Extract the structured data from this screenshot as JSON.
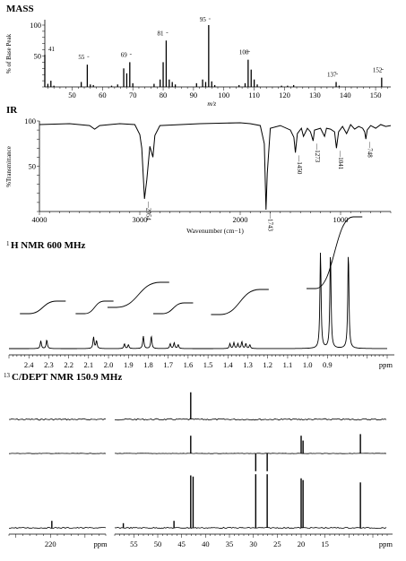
{
  "chart_data": [
    {
      "type": "bar",
      "panel": "mass",
      "title": "MASS",
      "ylabel": "% of Base Peak",
      "xlabel": "m/z",
      "xlim": [
        41,
        155
      ],
      "ylim": [
        0,
        100
      ],
      "xticks": [
        "50",
        "60",
        "70",
        "80",
        "90",
        "100",
        "110",
        "120",
        "130",
        "140",
        "150"
      ],
      "yticks": [
        "100",
        "50"
      ],
      "annotations": [
        "41",
        "55",
        "69",
        "81",
        "95",
        "108",
        "137",
        "152"
      ],
      "peaks": [
        {
          "mz": 41,
          "i": 52
        },
        {
          "mz": 42,
          "i": 5
        },
        {
          "mz": 43,
          "i": 10
        },
        {
          "mz": 44,
          "i": 2
        },
        {
          "mz": 53,
          "i": 8
        },
        {
          "mz": 55,
          "i": 36
        },
        {
          "mz": 56,
          "i": 4
        },
        {
          "mz": 57,
          "i": 3
        },
        {
          "mz": 63,
          "i": 2
        },
        {
          "mz": 65,
          "i": 4
        },
        {
          "mz": 67,
          "i": 30
        },
        {
          "mz": 68,
          "i": 22
        },
        {
          "mz": 69,
          "i": 40
        },
        {
          "mz": 70,
          "i": 6
        },
        {
          "mz": 77,
          "i": 5
        },
        {
          "mz": 79,
          "i": 12
        },
        {
          "mz": 80,
          "i": 40
        },
        {
          "mz": 81,
          "i": 75
        },
        {
          "mz": 82,
          "i": 12
        },
        {
          "mz": 83,
          "i": 8
        },
        {
          "mz": 84,
          "i": 4
        },
        {
          "mz": 91,
          "i": 6
        },
        {
          "mz": 93,
          "i": 12
        },
        {
          "mz": 94,
          "i": 8
        },
        {
          "mz": 95,
          "i": 100
        },
        {
          "mz": 96,
          "i": 9
        },
        {
          "mz": 97,
          "i": 3
        },
        {
          "mz": 105,
          "i": 3
        },
        {
          "mz": 107,
          "i": 6
        },
        {
          "mz": 108,
          "i": 44
        },
        {
          "mz": 109,
          "i": 28
        },
        {
          "mz": 110,
          "i": 12
        },
        {
          "mz": 111,
          "i": 4
        },
        {
          "mz": 119,
          "i": 2
        },
        {
          "mz": 121,
          "i": 2
        },
        {
          "mz": 123,
          "i": 3
        },
        {
          "mz": 137,
          "i": 8
        },
        {
          "mz": 138,
          "i": 2
        },
        {
          "mz": 152,
          "i": 15
        }
      ]
    },
    {
      "type": "line",
      "panel": "ir",
      "title": "IR",
      "ylabel": "%Transmittance",
      "xlabel": "Wavenumber (cm−1)",
      "xlim": [
        4000,
        500
      ],
      "ylim": [
        0,
        100
      ],
      "xticks": [
        "4000",
        "3000",
        "2000",
        "1000"
      ],
      "yticks": [
        "100",
        "50"
      ],
      "annotations": [
        "2954",
        "1743",
        "1450",
        "1273",
        "1041",
        "748"
      ],
      "points": [
        [
          4000,
          96
        ],
        [
          3700,
          97
        ],
        [
          3500,
          95
        ],
        [
          3450,
          91
        ],
        [
          3400,
          95
        ],
        [
          3200,
          97
        ],
        [
          3050,
          96
        ],
        [
          3000,
          85
        ],
        [
          2980,
          70
        ],
        [
          2954,
          14
        ],
        [
          2930,
          35
        ],
        [
          2900,
          72
        ],
        [
          2870,
          60
        ],
        [
          2850,
          84
        ],
        [
          2800,
          95
        ],
        [
          2400,
          97
        ],
        [
          2000,
          98
        ],
        [
          1900,
          97
        ],
        [
          1800,
          95
        ],
        [
          1760,
          75
        ],
        [
          1743,
          2
        ],
        [
          1730,
          42
        ],
        [
          1700,
          92
        ],
        [
          1600,
          95
        ],
        [
          1500,
          90
        ],
        [
          1465,
          82
        ],
        [
          1450,
          65
        ],
        [
          1430,
          86
        ],
        [
          1390,
          92
        ],
        [
          1370,
          83
        ],
        [
          1330,
          92
        ],
        [
          1300,
          88
        ],
        [
          1273,
          78
        ],
        [
          1260,
          90
        ],
        [
          1200,
          92
        ],
        [
          1160,
          83
        ],
        [
          1140,
          92
        ],
        [
          1100,
          91
        ],
        [
          1060,
          88
        ],
        [
          1041,
          70
        ],
        [
          1020,
          88
        ],
        [
          980,
          94
        ],
        [
          940,
          86
        ],
        [
          900,
          96
        ],
        [
          860,
          91
        ],
        [
          820,
          94
        ],
        [
          780,
          92
        ],
        [
          760,
          88
        ],
        [
          748,
          80
        ],
        [
          735,
          90
        ],
        [
          700,
          95
        ],
        [
          650,
          92
        ],
        [
          600,
          96
        ],
        [
          550,
          94
        ],
        [
          500,
          95
        ]
      ]
    },
    {
      "type": "line",
      "panel": "hnmr",
      "title": "H NMR 600 MHz",
      "title_sup": "1",
      "xlabel": "ppm",
      "xlim": [
        2.5,
        0.6
      ],
      "xticks": [
        "2.4",
        "2.3",
        "2.2",
        "2.1",
        "2.0",
        "1.9",
        "1.8",
        "1.7",
        "1.6",
        "1.5",
        "1.4",
        "1.3",
        "1.2",
        "1.1",
        "1.0",
        "0.9"
      ],
      "peaks": [
        {
          "ppm": 2.34,
          "h": 8
        },
        {
          "ppm": 2.31,
          "h": 9
        },
        {
          "ppm": 2.075,
          "h": 12
        },
        {
          "ppm": 2.06,
          "h": 8
        },
        {
          "ppm": 1.92,
          "h": 5
        },
        {
          "ppm": 1.9,
          "h": 4
        },
        {
          "ppm": 1.825,
          "h": 13
        },
        {
          "ppm": 1.785,
          "h": 13
        },
        {
          "ppm": 1.69,
          "h": 5
        },
        {
          "ppm": 1.67,
          "h": 6
        },
        {
          "ppm": 1.65,
          "h": 4
        },
        {
          "ppm": 1.39,
          "h": 5
        },
        {
          "ppm": 1.37,
          "h": 6
        },
        {
          "ppm": 1.35,
          "h": 5
        },
        {
          "ppm": 1.33,
          "h": 7
        },
        {
          "ppm": 1.31,
          "h": 5
        },
        {
          "ppm": 1.29,
          "h": 4
        },
        {
          "ppm": 0.935,
          "h": 100
        },
        {
          "ppm": 0.885,
          "h": 100
        },
        {
          "ppm": 0.795,
          "h": 100
        }
      ],
      "integrals": [
        {
          "from": 2.4,
          "to": 2.26,
          "rise": 14
        },
        {
          "from": 2.12,
          "to": 2.02,
          "rise": 14
        },
        {
          "from": 1.96,
          "to": 1.74,
          "rise": 28
        },
        {
          "from": 1.73,
          "to": 1.62,
          "rise": 12
        },
        {
          "from": 1.44,
          "to": 1.24,
          "rise": 28
        },
        {
          "from": 0.96,
          "to": 0.77,
          "rise": 80
        }
      ]
    },
    {
      "type": "line",
      "panel": "cnmr",
      "title": "C/DEPT NMR 150.9 MHz",
      "title_sup": "13",
      "xlabel": "ppm",
      "left_xlim": [
        226,
        212
      ],
      "right_xlim": [
        59,
        2
      ],
      "left_xticks": [
        "220"
      ],
      "right_xticks": [
        "55",
        "50",
        "45",
        "40",
        "35",
        "30",
        "25",
        "20",
        "15"
      ],
      "dept90": [
        {
          "ppm": 43.1,
          "h": 55
        }
      ],
      "dept135": [
        {
          "ppm": 43.1,
          "h": 22
        },
        {
          "ppm": 29.5,
          "h": -22
        },
        {
          "ppm": 27.1,
          "h": -22
        },
        {
          "ppm": 20.0,
          "h": 22
        },
        {
          "ppm": 19.6,
          "h": 16
        },
        {
          "ppm": 7.6,
          "h": 24
        }
      ],
      "carbon": [
        {
          "ppm": 219.8,
          "h": 12
        },
        {
          "ppm": 57.2,
          "h": 8
        },
        {
          "ppm": 46.6,
          "h": 12
        },
        {
          "ppm": 43.1,
          "h": 90
        },
        {
          "ppm": 42.6,
          "h": 88
        },
        {
          "ppm": 29.5,
          "h": 92
        },
        {
          "ppm": 27.1,
          "h": 92
        },
        {
          "ppm": 20.0,
          "h": 85
        },
        {
          "ppm": 19.6,
          "h": 82
        },
        {
          "ppm": 7.6,
          "h": 78
        }
      ]
    }
  ]
}
